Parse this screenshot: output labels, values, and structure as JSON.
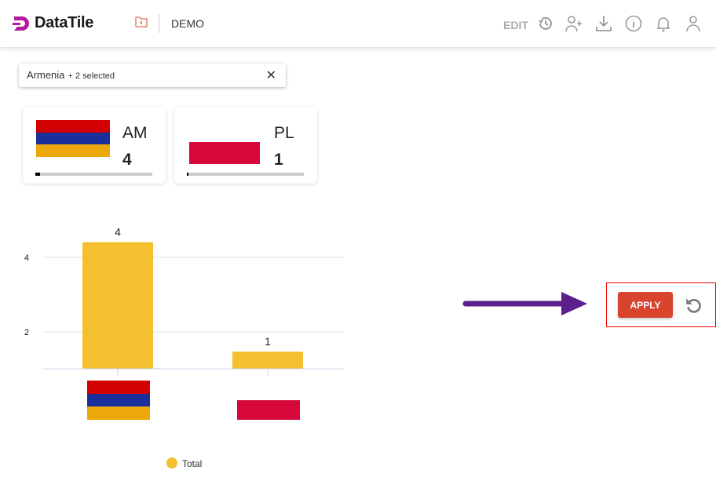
{
  "header": {
    "logo": "DataTile",
    "project": "DEMO",
    "edit_label": "EDIT",
    "icons": [
      "history-icon",
      "add-user-icon",
      "download-icon",
      "info-icon",
      "bell-icon",
      "user-icon"
    ]
  },
  "filter": {
    "value": "Armenia",
    "selected": "+ 2 selected"
  },
  "cards": [
    {
      "code": "AM",
      "value": "4",
      "progress": 0.04
    },
    {
      "code": "PL",
      "value": "1",
      "progress": 0.01
    }
  ],
  "colors": {
    "brand": "#b5179e",
    "bar": "#f4c030",
    "apply": "#d9442f",
    "arrow": "#5c1f8c"
  },
  "actions": {
    "apply_label": "APPLY"
  },
  "chart_data": {
    "type": "bar",
    "categories": [
      "AM",
      "PL"
    ],
    "series": [
      {
        "name": "Total",
        "values": [
          4,
          1
        ]
      }
    ],
    "yticks": [
      "2",
      "4"
    ],
    "data_labels": [
      "4",
      "1"
    ],
    "legend": "bottom",
    "grid": true
  }
}
